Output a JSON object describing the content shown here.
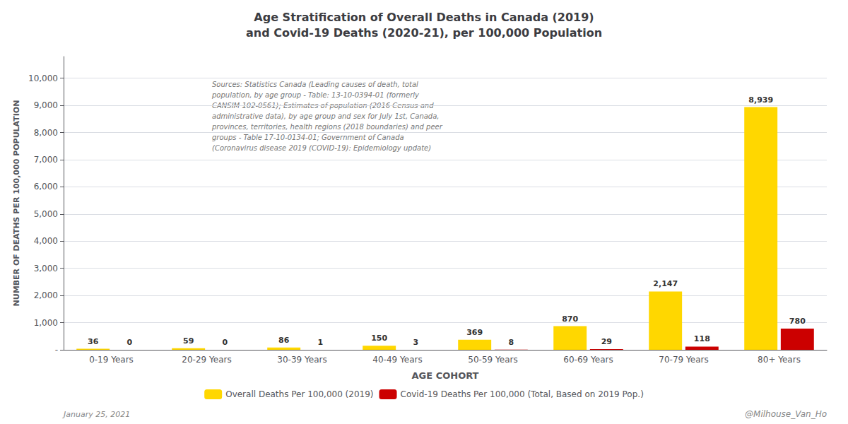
{
  "chart_data": {
    "type": "bar",
    "title": "Age Stratification of Overall Deaths in Canada (2019)\nand Covid-19 Deaths (2020-21), per 100,000 Population",
    "xlabel": "AGE COHORT",
    "ylabel": "NUMBER OF DEATHS PER 100,000 POPULATION",
    "categories": [
      "0-19 Years",
      "20-29 Years",
      "30-39 Years",
      "40-49 Years",
      "50-59 Years",
      "60-69 Years",
      "70-79 Years",
      "80+ Years"
    ],
    "series": [
      {
        "name": "Overall Deaths Per 100,000 (2019)",
        "color": "#FFD700",
        "values": [
          36,
          59,
          86,
          150,
          369,
          870,
          2147,
          8939
        ],
        "value_labels": [
          "36",
          "59",
          "86",
          "150",
          "369",
          "870",
          "2,147",
          "8,939"
        ]
      },
      {
        "name": "Covid-19 Deaths Per 100,000 (Total, Based on 2019 Pop.)",
        "color": "#CC0000",
        "values": [
          0,
          0,
          1,
          3,
          8,
          29,
          118,
          780
        ],
        "value_labels": [
          "0",
          "0",
          "1",
          "3",
          "8",
          "29",
          "118",
          "780"
        ]
      }
    ],
    "ylim": [
      0,
      10800
    ],
    "yticks": [
      {
        "value": 0,
        "label": "-"
      },
      {
        "value": 1000,
        "label": "1,000"
      },
      {
        "value": 2000,
        "label": "2,000"
      },
      {
        "value": 3000,
        "label": "3,000"
      },
      {
        "value": 4000,
        "label": "4,000"
      },
      {
        "value": 5000,
        "label": "5,000"
      },
      {
        "value": 6000,
        "label": "6,000"
      },
      {
        "value": 7000,
        "label": "7,000"
      },
      {
        "value": 8000,
        "label": "8,000"
      },
      {
        "value": 9000,
        "label": "9,000"
      },
      {
        "value": 10000,
        "label": "10,000"
      }
    ],
    "grid": true,
    "legend": "bottom",
    "data_labels": true,
    "annotations": [
      "Sources: Statistics Canada (Leading causes of death, total\npopulation, by age group - Table: 13-10-0394-01 (formerly\nCANSIM 102-0561); Estimates of population (2016 Census and\nadministrative data), by age group and sex for July 1st, Canada,\nprovinces, territories, health regions (2018 boundaries) and peer\ngroups - Table 17-10-0134-01; Government of Canada\n(Coronavirus disease 2019 (COVID-19): Epidemiology update)",
      "January 25, 2021",
      "@Milhouse_Van_Ho"
    ]
  }
}
